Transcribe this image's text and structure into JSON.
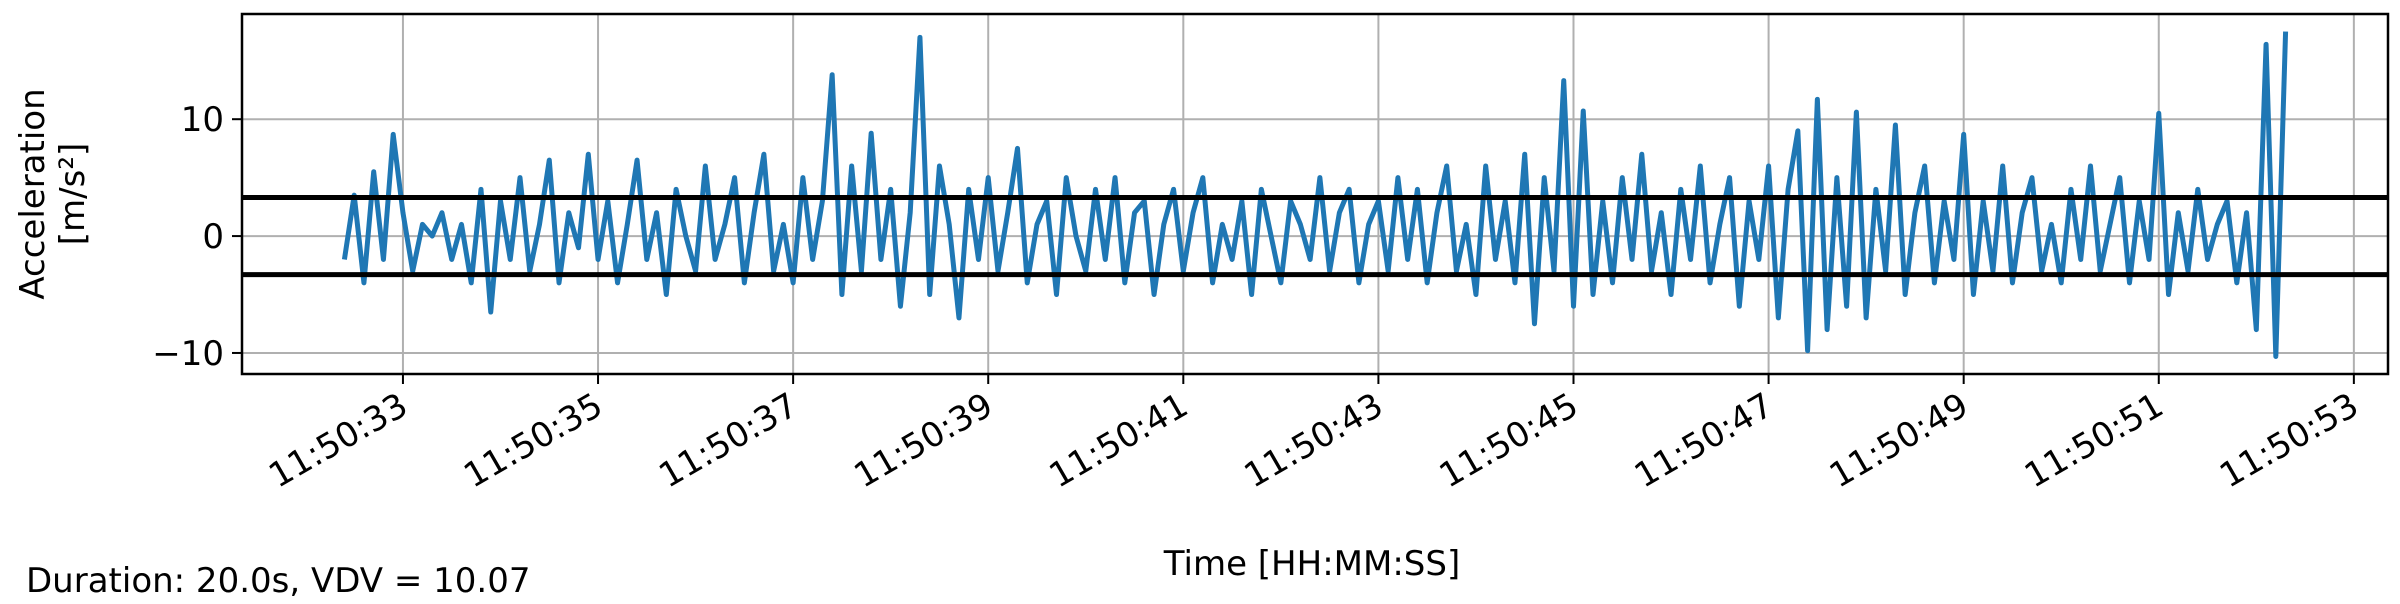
{
  "chart_data": {
    "type": "line",
    "ylabel": [
      "Acceleration",
      "[m/s²]"
    ],
    "xlabel": "Time [HH:MM:SS]",
    "annotation": "Duration: 20.0s, VDV = 10.07",
    "color": "#1f77b4",
    "grid": true,
    "hlines": [
      3.3,
      -3.3
    ],
    "hline_color": "#000000",
    "xlim": [
      42631.35,
      42653.35
    ],
    "ylim": [
      -11.8,
      19
    ],
    "yticks": [
      {
        "value": -10,
        "label": "−10"
      },
      0,
      10
    ],
    "xticks": [
      {
        "value": 42633,
        "label": "11:50:33"
      },
      {
        "value": 42635,
        "label": "11:50:35"
      },
      {
        "value": 42637,
        "label": "11:50:37"
      },
      {
        "value": 42639,
        "label": "11:50:39"
      },
      {
        "value": 42641,
        "label": "11:50:41"
      },
      {
        "value": 42643,
        "label": "11:50:43"
      },
      {
        "value": 42645,
        "label": "11:50:45"
      },
      {
        "value": 42647,
        "label": "11:50:47"
      },
      {
        "value": 42649,
        "label": "11:50:49"
      },
      {
        "value": 42651,
        "label": "11:50:51"
      },
      {
        "value": 42653,
        "label": "11:50:53"
      }
    ],
    "x": [
      42632.4,
      42632.5,
      42632.6,
      42632.7,
      42632.8,
      42632.9,
      42633.0,
      42633.1,
      42633.2,
      42633.3,
      42633.4,
      42633.5,
      42633.6,
      42633.7,
      42633.8,
      42633.9,
      42634.0,
      42634.1,
      42634.2,
      42634.3,
      42634.4,
      42634.5,
      42634.6,
      42634.7,
      42634.8,
      42634.9,
      42635.0,
      42635.1,
      42635.2,
      42635.3,
      42635.4,
      42635.5,
      42635.6,
      42635.7,
      42635.8,
      42635.9,
      42636.0,
      42636.1,
      42636.2,
      42636.3,
      42636.4,
      42636.5,
      42636.6,
      42636.7,
      42636.8,
      42636.9,
      42637.0,
      42637.1,
      42637.2,
      42637.3,
      42637.4,
      42637.5,
      42637.6,
      42637.7,
      42637.8,
      42637.9,
      42638.0,
      42638.1,
      42638.2,
      42638.3,
      42638.4,
      42638.5,
      42638.6,
      42638.7,
      42638.8,
      42638.9,
      42639.0,
      42639.1,
      42639.2,
      42639.3,
      42639.4,
      42639.5,
      42639.6,
      42639.7,
      42639.8,
      42639.9,
      42640.0,
      42640.1,
      42640.2,
      42640.3,
      42640.4,
      42640.5,
      42640.6,
      42640.7,
      42640.8,
      42640.9,
      42641.0,
      42641.1,
      42641.2,
      42641.3,
      42641.4,
      42641.5,
      42641.6,
      42641.7,
      42641.8,
      42641.9,
      42642.0,
      42642.1,
      42642.2,
      42642.3,
      42642.4,
      42642.5,
      42642.6,
      42642.7,
      42642.8,
      42642.9,
      42643.0,
      42643.1,
      42643.2,
      42643.3,
      42643.4,
      42643.5,
      42643.6,
      42643.7,
      42643.8,
      42643.9,
      42644.0,
      42644.1,
      42644.2,
      42644.3,
      42644.4,
      42644.5,
      42644.6,
      42644.7,
      42644.8,
      42644.9,
      42645.0,
      42645.1,
      42645.2,
      42645.3,
      42645.4,
      42645.5,
      42645.6,
      42645.7,
      42645.8,
      42645.9,
      42646.0,
      42646.1,
      42646.2,
      42646.3,
      42646.4,
      42646.5,
      42646.6,
      42646.7,
      42646.8,
      42646.9,
      42647.0,
      42647.1,
      42647.2,
      42647.3,
      42647.4,
      42647.5,
      42647.6,
      42647.7,
      42647.8,
      42647.9,
      42648.0,
      42648.1,
      42648.2,
      42648.3,
      42648.4,
      42648.5,
      42648.6,
      42648.7,
      42648.8,
      42648.9,
      42649.0,
      42649.1,
      42649.2,
      42649.3,
      42649.4,
      42649.5,
      42649.6,
      42649.7,
      42649.8,
      42649.9,
      42650.0,
      42650.1,
      42650.2,
      42650.3,
      42650.4,
      42650.5,
      42650.6,
      42650.7,
      42650.8,
      42650.9,
      42651.0,
      42651.1,
      42651.2,
      42651.3,
      42651.4,
      42651.5,
      42651.6,
      42651.7,
      42651.8,
      42651.9,
      42652.0,
      42652.1,
      42652.2,
      42652.3
    ],
    "values": [
      -2,
      3.5,
      -4,
      5.5,
      -2,
      8.7,
      2,
      -3,
      1,
      0,
      2,
      -2,
      1,
      -4,
      4,
      -6.5,
      3,
      -2,
      5,
      -3,
      1,
      6.5,
      -4,
      2,
      -1,
      7,
      -2,
      3,
      -4,
      1,
      6.5,
      -2,
      2,
      -5,
      4,
      0,
      -3,
      6,
      -2,
      1,
      5,
      -4,
      2,
      7,
      -3,
      1,
      -4,
      5,
      -2,
      3,
      13.8,
      -5,
      6,
      -3,
      8.8,
      -2,
      4,
      -6,
      2,
      17,
      -5,
      6,
      1,
      -7,
      4,
      -2,
      5,
      -3,
      2,
      7.5,
      -4,
      1,
      3,
      -5,
      5,
      0,
      -3,
      4,
      -2,
      5,
      -4,
      2,
      3,
      -5,
      1,
      4,
      -3,
      2,
      5,
      -4,
      1,
      -2,
      3,
      -5,
      4,
      0,
      -4,
      3,
      1,
      -2,
      5,
      -3,
      2,
      4,
      -4,
      1,
      3,
      -3,
      5,
      -2,
      4,
      -4,
      2,
      6,
      -3,
      1,
      -5,
      6,
      -2,
      3,
      -4,
      7,
      -7.5,
      5,
      -3,
      13.3,
      -6,
      10.7,
      -5,
      3,
      -4,
      5,
      -2,
      7,
      -3,
      2,
      -5,
      4,
      -2,
      6,
      -4,
      1,
      5,
      -6,
      3,
      -2,
      6,
      -7,
      4,
      9,
      -9.8,
      11.7,
      -8,
      5,
      -6,
      10.6,
      -7,
      4,
      -3,
      9.5,
      -5,
      2,
      6,
      -4,
      3,
      -2,
      8.7,
      -5,
      3,
      -3,
      6,
      -4,
      2,
      5,
      -3,
      1,
      -4,
      4,
      -2,
      6,
      -3,
      1,
      5,
      -4,
      3,
      -2,
      10.5,
      -5,
      2,
      -3,
      4,
      -2,
      1,
      3,
      -4,
      2,
      -8,
      16.4,
      -10.3,
      17.5
    ]
  }
}
